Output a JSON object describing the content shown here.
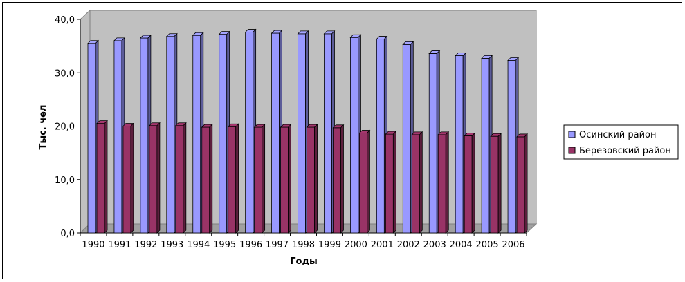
{
  "chart_data": {
    "type": "bar",
    "title": "",
    "xlabel": "Годы",
    "ylabel": "Тыс. чел",
    "ylim": [
      0,
      40
    ],
    "yticks": [
      "0,0",
      "10,0",
      "20,0",
      "30,0",
      "40,0"
    ],
    "grid": false,
    "legend_position": "right",
    "categories": [
      "1990",
      "1991",
      "1992",
      "1993",
      "1994",
      "1995",
      "1996",
      "1997",
      "1998",
      "1999",
      "2000",
      "2001",
      "2002",
      "2003",
      "2004",
      "2005",
      "2006"
    ],
    "series": [
      {
        "name": "Осинский район",
        "color": "#9999ff",
        "values": [
          35.5,
          36.0,
          36.5,
          36.8,
          37.0,
          37.2,
          37.6,
          37.4,
          37.3,
          37.3,
          36.6,
          36.3,
          35.3,
          33.6,
          33.2,
          32.7,
          32.3
        ]
      },
      {
        "name": "Березовский район",
        "color": "#993366",
        "values": [
          20.5,
          20.0,
          20.1,
          20.1,
          19.8,
          19.9,
          19.8,
          19.8,
          19.8,
          19.7,
          18.7,
          18.5,
          18.4,
          18.4,
          18.2,
          18.1,
          18.0
        ]
      }
    ]
  }
}
